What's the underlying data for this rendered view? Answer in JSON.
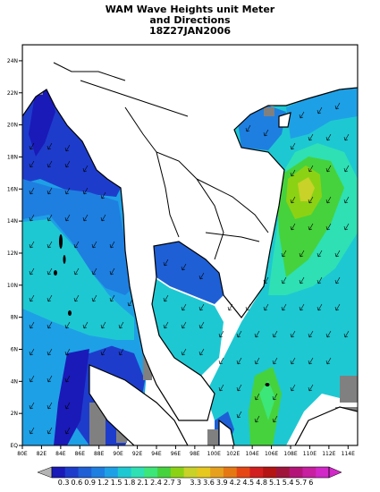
{
  "title": {
    "line1": "WAM Wave Heights unit Meter",
    "line2": "and Directions",
    "line3": "18Z27JAN2006"
  },
  "map": {
    "lon_range": [
      "80E",
      "115E"
    ],
    "lat_range": [
      "0",
      "25N"
    ],
    "lon_ticks": [
      "80E",
      "82E",
      "84E",
      "86E",
      "88E",
      "90E",
      "92E",
      "94E",
      "96E",
      "98E",
      "100E",
      "102E",
      "104E",
      "106E",
      "108E",
      "110E",
      "112E",
      "114E"
    ],
    "lat_ticks": [
      "EQ",
      "2N",
      "4N",
      "6N",
      "8N",
      "10N",
      "12N",
      "14N",
      "16N",
      "18N",
      "20N",
      "22N",
      "24N"
    ],
    "land_color": "#ffffff",
    "missing_color": "#808080"
  },
  "colorbar": {
    "labels": [
      "0.3",
      "0.6",
      "0.9",
      "1.2",
      "1.5",
      "1.8",
      "2.1",
      "2.4",
      "2.7",
      "3",
      "3.3",
      "3.6",
      "3.9",
      "4.2",
      "4.5",
      "4.8",
      "5.1",
      "5.4",
      "5.7",
      "6"
    ],
    "colors": [
      "#1a1ab8",
      "#1e3ccc",
      "#1e5fd6",
      "#1e7fe0",
      "#1ea0e6",
      "#1ec8d2",
      "#2ee0b4",
      "#3ce678",
      "#46d23c",
      "#8cd214",
      "#c8d228",
      "#e6c81e",
      "#e6a01e",
      "#e67814",
      "#e64614",
      "#d21e1e",
      "#b41414",
      "#a0143c",
      "#b41478",
      "#c81ea0",
      "#d228c8"
    ]
  }
}
